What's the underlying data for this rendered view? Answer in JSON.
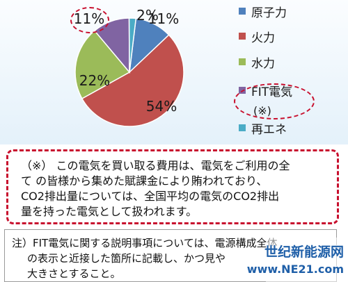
{
  "chart_data": {
    "type": "pie",
    "series": [
      {
        "name": "原子力",
        "value": 11,
        "label": "11%",
        "color": "#4f81bd"
      },
      {
        "name": "火力",
        "value": 54,
        "label": "54%",
        "color": "#c0504d"
      },
      {
        "name": "水力",
        "value": 22,
        "label": "22%",
        "color": "#9bbb59"
      },
      {
        "name": "FIT電気",
        "value": 11,
        "label": "11%",
        "color": "#8064a2"
      },
      {
        "name": "再エネ",
        "value": 2,
        "label": "2%",
        "color": "#4bacc6"
      }
    ],
    "legend_note": "(※)",
    "legend_position": "right"
  },
  "notice": {
    "lines": [
      "（※） この電気を買い取る費用は、電気をご利用の全",
      "て の皆様から集めた賦課金により賄われており、",
      "CO2排出量については、全国平均の電気のCO2排出",
      "量を持った電気として扱われます。"
    ]
  },
  "note": {
    "lines": [
      "注）FIT電気に関する説明事項については、電源構成全体",
      "の表示と近接した箇所に記載し、かつ見や",
      "大きさとすること。"
    ]
  },
  "watermark": {
    "name": "世纪新能源网",
    "url": "www.NE21.com"
  }
}
